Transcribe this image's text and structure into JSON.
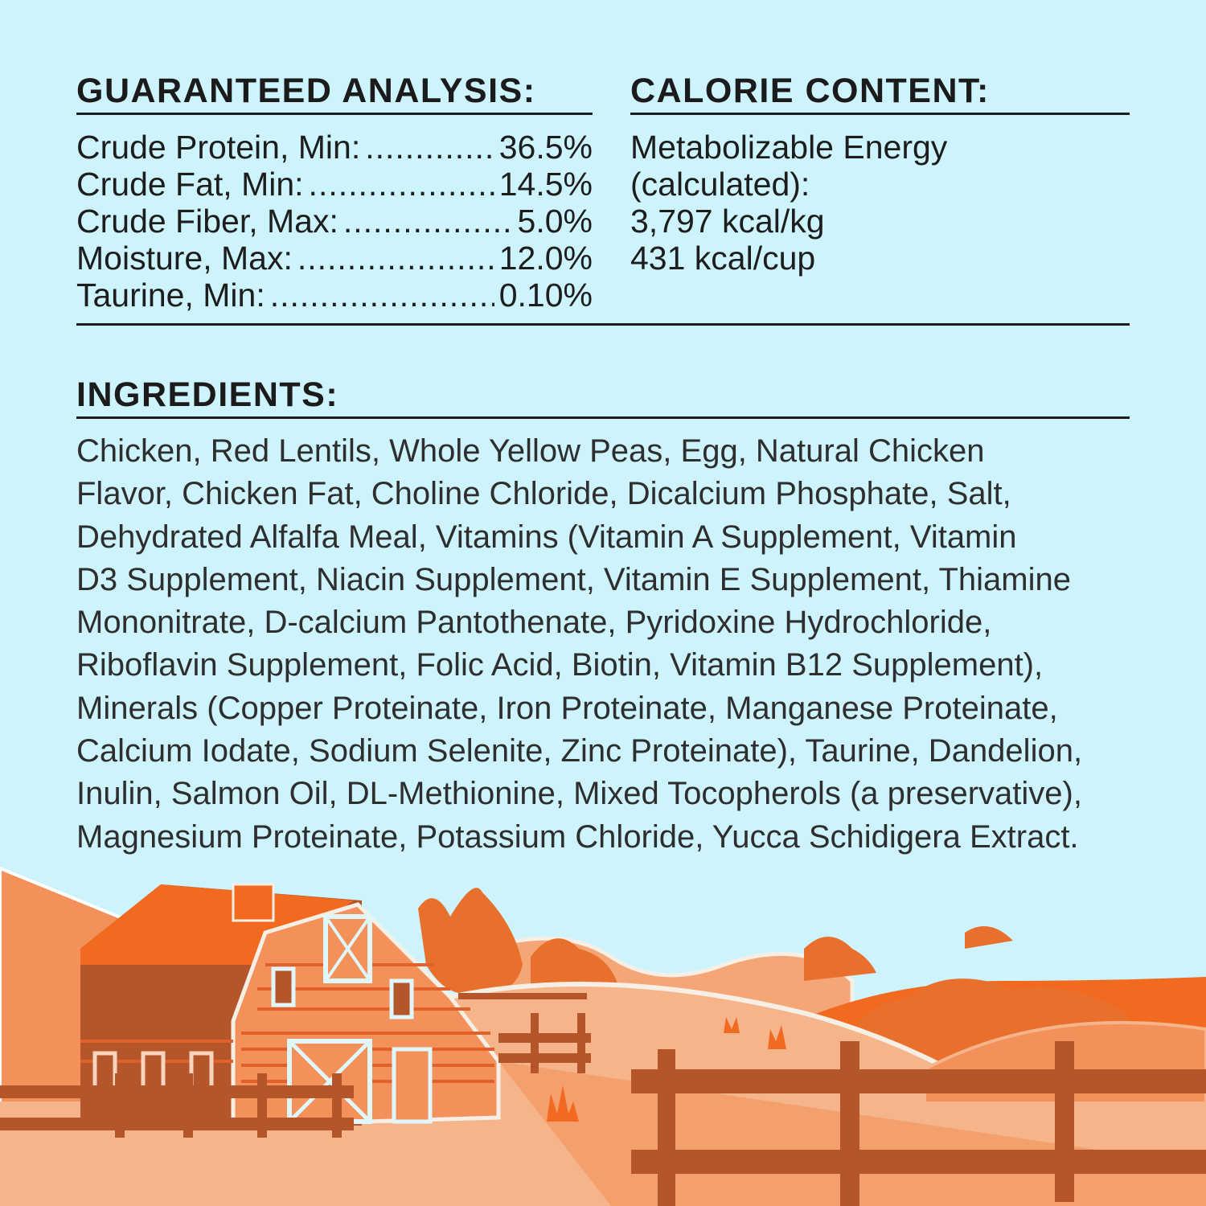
{
  "guaranteed_analysis": {
    "heading": "GUARANTEED ANALYSIS:",
    "rows": [
      {
        "label": "Crude Protein, Min:",
        "value": "36.5%"
      },
      {
        "label": "Crude Fat, Min:",
        "value": "14.5%"
      },
      {
        "label": "Crude Fiber, Max:",
        "value": "5.0%"
      },
      {
        "label": "Moisture, Max:",
        "value": "12.0%"
      },
      {
        "label": "Taurine, Min:",
        "value": "0.10%"
      }
    ]
  },
  "calorie_content": {
    "heading": "CALORIE CONTENT:",
    "lines": [
      "Metabolizable Energy",
      "(calculated):",
      "3,797 kcal/kg",
      "431 kcal/cup"
    ]
  },
  "ingredients": {
    "heading": "INGREDIENTS:",
    "lines": [
      "Chicken, Red Lentils, Whole Yellow Peas, Egg, Natural Chicken",
      "Flavor, Chicken Fat, Choline Chloride, Dicalcium Phosphate, Salt,",
      "Dehydrated Alfalfa Meal, Vitamins (Vitamin A Supplement, Vitamin",
      "D3 Supplement, Niacin Supplement, Vitamin E Supplement, Thiamine",
      "Mononitrate, D-calcium Pantothenate, Pyridoxine Hydrochloride,",
      "Riboflavin Supplement, Folic Acid, Biotin, Vitamin B12 Supplement),",
      "Minerals (Copper Proteinate, Iron Proteinate, Manganese Proteinate,",
      "Calcium Iodate, Sodium Selenite, Zinc Proteinate), Taurine, Dandelion,",
      "Inulin, Salmon Oil, DL-Methionine, Mixed Tocopherols (a preservative),",
      "Magnesium Proteinate, Potassium Chloride, Yucca Schidigera Extract."
    ]
  },
  "colors": {
    "background": "#cdf3fc",
    "text": "#1d1d1d",
    "orange_bright": "#f26a1f",
    "orange_mid": "#f4915a",
    "orange_light": "#f5b48a",
    "brown": "#b5552a"
  },
  "illustration": {
    "subject": "farm-barn-scene"
  }
}
